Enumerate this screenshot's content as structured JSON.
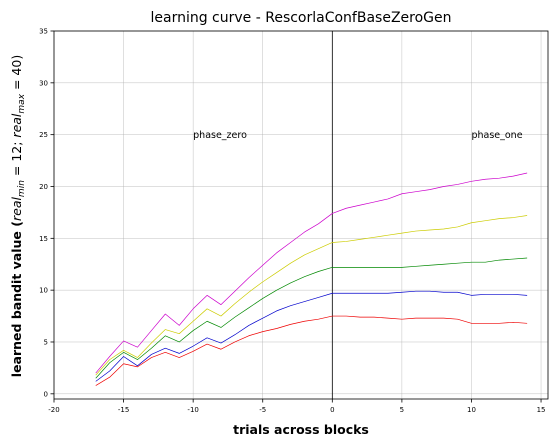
{
  "chart_data": {
    "type": "line",
    "title": "learning curve - RescorlaConfBaseZeroGen",
    "xlabel": "trials across blocks",
    "ylabel": "learned bandit value (real_min = 12; real_max = 40)",
    "ylabel_parts": {
      "lead": "learned bandit value (",
      "v1": "real",
      "sub1": "min",
      "eq1": " = 12; ",
      "v2": "real",
      "sub2": "max",
      "eq2": " = 40)"
    },
    "xlim": [
      -20,
      15.5
    ],
    "ylim": [
      -0.5,
      35
    ],
    "xticks": [
      "-20",
      "-15",
      "-10",
      "-5",
      "0",
      "5",
      "10",
      "15"
    ],
    "xtick_values": [
      -20,
      -15,
      -10,
      -5,
      0,
      5,
      10,
      15
    ],
    "yticks": [
      "0",
      "5",
      "10",
      "15",
      "20",
      "25",
      "30",
      "35"
    ],
    "ytick_values": [
      0,
      5,
      10,
      15,
      20,
      25,
      30,
      35
    ],
    "grid": true,
    "vline_x": 0,
    "annotations": [
      {
        "text": "phase_zero",
        "x": -10,
        "y": 25
      },
      {
        "text": "phase_one",
        "x": 10,
        "y": 25
      }
    ],
    "x": [
      -17,
      -16,
      -15,
      -14,
      -13,
      -12,
      -11,
      -10,
      -9,
      -8,
      -7,
      -6,
      -5,
      -4,
      -3,
      -2,
      -1,
      0,
      1,
      2,
      3,
      4,
      5,
      6,
      7,
      8,
      9,
      10,
      11,
      12,
      13,
      14
    ],
    "series": [
      {
        "color": "#cc00cc",
        "values": [
          2.0,
          3.6,
          5.1,
          4.5,
          6.1,
          7.7,
          6.6,
          8.2,
          9.5,
          8.6,
          9.9,
          11.2,
          12.4,
          13.6,
          14.6,
          15.6,
          16.4,
          17.4,
          17.9,
          18.2,
          18.5,
          18.8,
          19.3,
          19.5,
          19.7,
          20.0,
          20.2,
          20.5,
          20.7,
          20.8,
          21.0,
          21.3
        ]
      },
      {
        "color": "#cccc00",
        "values": [
          1.8,
          3.3,
          4.2,
          3.5,
          4.9,
          6.2,
          5.8,
          7.0,
          8.2,
          7.5,
          8.7,
          9.8,
          10.8,
          11.7,
          12.6,
          13.4,
          14.0,
          14.6,
          14.7,
          14.9,
          15.1,
          15.3,
          15.5,
          15.7,
          15.8,
          15.9,
          16.1,
          16.5,
          16.7,
          16.9,
          17.0,
          17.2
        ]
      },
      {
        "color": "#008800",
        "values": [
          1.5,
          3.0,
          4.0,
          3.3,
          4.4,
          5.6,
          5.0,
          6.1,
          7.0,
          6.4,
          7.4,
          8.3,
          9.2,
          10.0,
          10.7,
          11.3,
          11.8,
          12.2,
          12.2,
          12.2,
          12.2,
          12.2,
          12.2,
          12.3,
          12.4,
          12.5,
          12.6,
          12.7,
          12.7,
          12.9,
          13.0,
          13.1
        ]
      },
      {
        "color": "#0000cc",
        "values": [
          1.2,
          2.2,
          3.6,
          2.7,
          3.8,
          4.4,
          3.9,
          4.6,
          5.4,
          4.9,
          5.7,
          6.6,
          7.3,
          8.0,
          8.5,
          8.9,
          9.3,
          9.7,
          9.7,
          9.7,
          9.7,
          9.7,
          9.8,
          9.9,
          9.9,
          9.8,
          9.8,
          9.5,
          9.6,
          9.6,
          9.6,
          9.5
        ]
      },
      {
        "color": "#ee0000",
        "values": [
          0.8,
          1.6,
          2.9,
          2.6,
          3.5,
          4.0,
          3.5,
          4.1,
          4.8,
          4.3,
          5.0,
          5.6,
          6.0,
          6.3,
          6.7,
          7.0,
          7.2,
          7.5,
          7.5,
          7.4,
          7.4,
          7.3,
          7.2,
          7.3,
          7.3,
          7.3,
          7.2,
          6.8,
          6.8,
          6.8,
          6.9,
          6.8
        ]
      }
    ]
  }
}
